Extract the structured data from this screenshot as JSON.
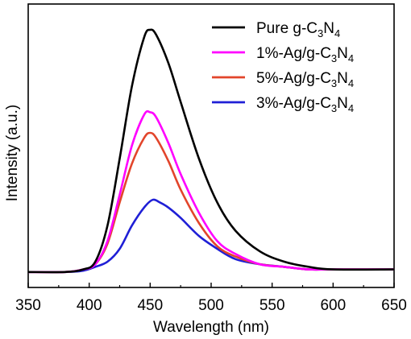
{
  "chart_data": {
    "type": "line",
    "title": "",
    "xlabel": "Wavelength (nm)",
    "ylabel": "Intensity (a.u.)",
    "xlim": [
      350,
      650
    ],
    "ylim": [
      0,
      1.1
    ],
    "x_ticks": [
      "350",
      "400",
      "450",
      "500",
      "550",
      "600",
      "650"
    ],
    "y_ticks_shown": false,
    "grid": false,
    "legend_position": "top-right",
    "series": [
      {
        "name": "Pure g-C3N4",
        "legend": [
          "Pure g-C",
          "3",
          "N",
          "4"
        ],
        "color": "#000000",
        "x": [
          350,
          380,
          395,
          405,
          415,
          425,
          435,
          445,
          450,
          455,
          465,
          475,
          490,
          505,
          520,
          540,
          560,
          580,
          600,
          650
        ],
        "y": [
          0.06,
          0.06,
          0.07,
          0.1,
          0.24,
          0.5,
          0.78,
          0.97,
          1.0,
          0.98,
          0.87,
          0.72,
          0.5,
          0.33,
          0.22,
          0.14,
          0.1,
          0.08,
          0.07,
          0.07
        ]
      },
      {
        "name": "1%-Ag/g-C3N4",
        "legend": [
          "1%-Ag/g-C",
          "3",
          "N",
          "4"
        ],
        "color": "#ff00ff",
        "x": [
          350,
          380,
          395,
          405,
          415,
          425,
          435,
          445,
          450,
          455,
          465,
          475,
          490,
          505,
          520,
          540,
          560,
          580,
          600,
          650
        ],
        "y": [
          0.06,
          0.06,
          0.07,
          0.09,
          0.18,
          0.36,
          0.55,
          0.67,
          0.68,
          0.66,
          0.56,
          0.44,
          0.29,
          0.18,
          0.13,
          0.09,
          0.08,
          0.07,
          0.07,
          0.07
        ]
      },
      {
        "name": "5%-Ag/g-C3N4",
        "legend": [
          "5%-Ag/g-C",
          "3",
          "N",
          "4"
        ],
        "color": "#e2452b",
        "x": [
          350,
          380,
          395,
          405,
          415,
          425,
          435,
          445,
          450,
          455,
          465,
          475,
          490,
          505,
          520,
          540,
          560,
          580,
          600,
          650
        ],
        "y": [
          0.06,
          0.06,
          0.07,
          0.09,
          0.17,
          0.33,
          0.48,
          0.58,
          0.6,
          0.58,
          0.49,
          0.38,
          0.25,
          0.16,
          0.12,
          0.09,
          0.08,
          0.07,
          0.07,
          0.07
        ]
      },
      {
        "name": "3%-Ag/g-C3N4",
        "legend": [
          "3%-Ag/g-C",
          "3",
          "N",
          "4"
        ],
        "color": "#1f1fd6",
        "x": [
          350,
          380,
          395,
          405,
          415,
          425,
          435,
          445,
          452,
          458,
          465,
          475,
          490,
          505,
          520,
          540,
          560,
          580,
          600,
          650
        ],
        "y": [
          0.06,
          0.06,
          0.065,
          0.08,
          0.1,
          0.15,
          0.24,
          0.31,
          0.34,
          0.33,
          0.31,
          0.27,
          0.2,
          0.15,
          0.11,
          0.09,
          0.08,
          0.07,
          0.07,
          0.07
        ]
      }
    ]
  }
}
